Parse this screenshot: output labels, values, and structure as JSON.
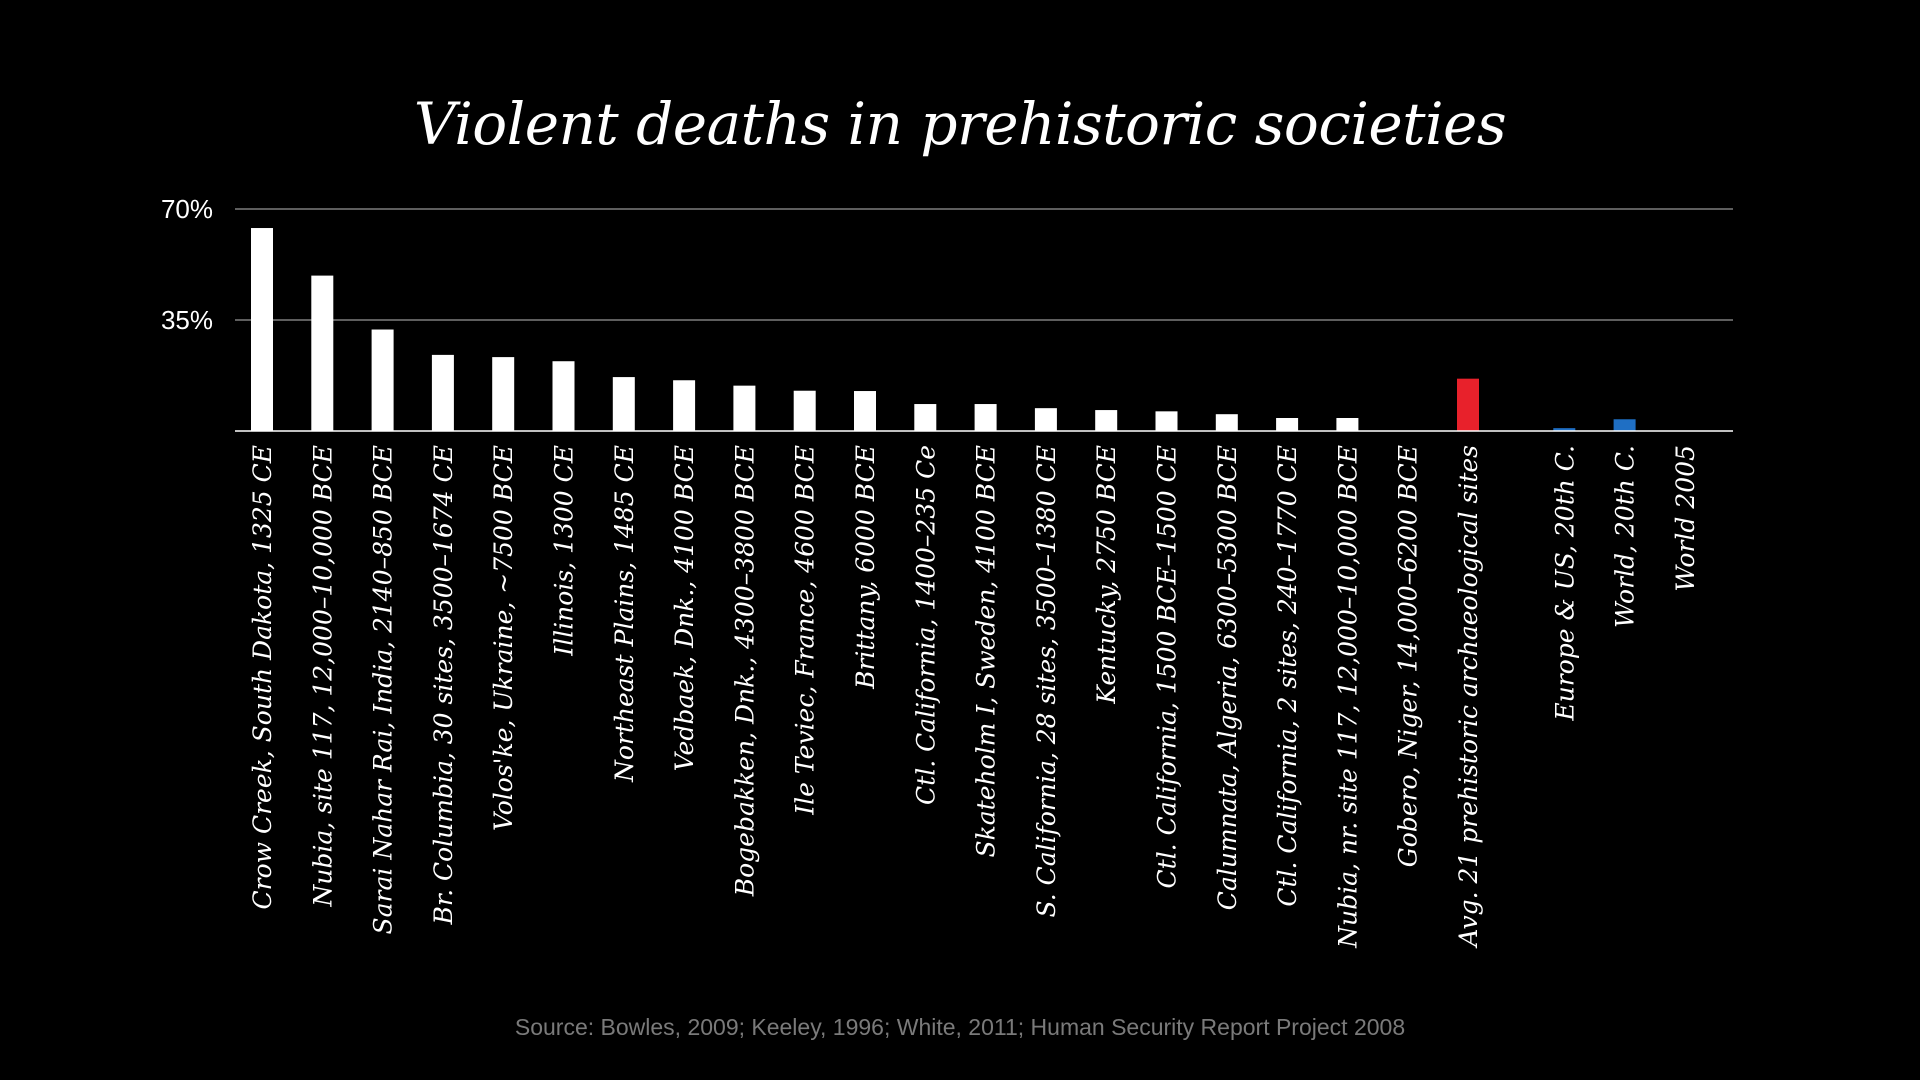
{
  "chart_data": {
    "type": "bar",
    "title": "Violent deaths in prehistoric societies",
    "xlabel": "",
    "ylabel": "",
    "ylim": [
      0,
      70
    ],
    "yticks": [
      {
        "value": 70,
        "label": "70%"
      },
      {
        "value": 35,
        "label": "35%"
      }
    ],
    "grid": true,
    "categories": [
      "Crow Creek, South Dakota, 1325 CE",
      "Nubia, site 117, 12,000–10,000 BCE",
      "Sarai Nahar Rai, India, 2140–850 BCE",
      "Br. Columbia, 30 sites, 3500–1674 CE",
      "Volos'ke, Ukraine, ~7500 BCE",
      "Illinois, 1300 CE",
      "Northeast Plains, 1485 CE",
      "Vedbaek, Dnk., 4100 BCE",
      "Bogebakken, Dnk., 4300–3800 BCE",
      "Ile Teviec, France, 4600 BCE",
      "Brittany, 6000 BCE",
      "Ctl. California, 1400–235 Ce",
      "Skateholm I, Sweden, 4100 BCE",
      "S. California, 28 sites, 3500–1380 CE",
      "Kentucky, 2750 BCE",
      "Ctl. California, 1500 BCE–1500 CE",
      "Calumnata, Algeria, 6300–5300 BCE",
      "Ctl. California, 2 sites, 240–1770 CE",
      "Nubia, nr. site 117, 12,000–10,000 BCE",
      "Gobero, Niger, 14,000–6200 BCE",
      "Avg. 21 prehistoric archaeological sites",
      "Europe & US, 20th C.",
      "World, 20th C.",
      "World 2005"
    ],
    "values": [
      64,
      49,
      32,
      24,
      23.3,
      22,
      17,
      16,
      14.3,
      12.7,
      12.6,
      8.5,
      8.5,
      7.2,
      6.6,
      6.2,
      5.3,
      4.1,
      4.1,
      0,
      16.5,
      0.9,
      3.7,
      0.1
    ],
    "colors": [
      "#ffffff",
      "#ffffff",
      "#ffffff",
      "#ffffff",
      "#ffffff",
      "#ffffff",
      "#ffffff",
      "#ffffff",
      "#ffffff",
      "#ffffff",
      "#ffffff",
      "#ffffff",
      "#ffffff",
      "#ffffff",
      "#ffffff",
      "#ffffff",
      "#ffffff",
      "#ffffff",
      "#ffffff",
      "#ffffff",
      "#e8212b",
      "#1f6fc4",
      "#1f6fc4",
      "#1f6fc4"
    ],
    "source": "Source: Bowles, 2009; Keeley, 1996; White, 2011; Human Security Report Project 2008"
  }
}
